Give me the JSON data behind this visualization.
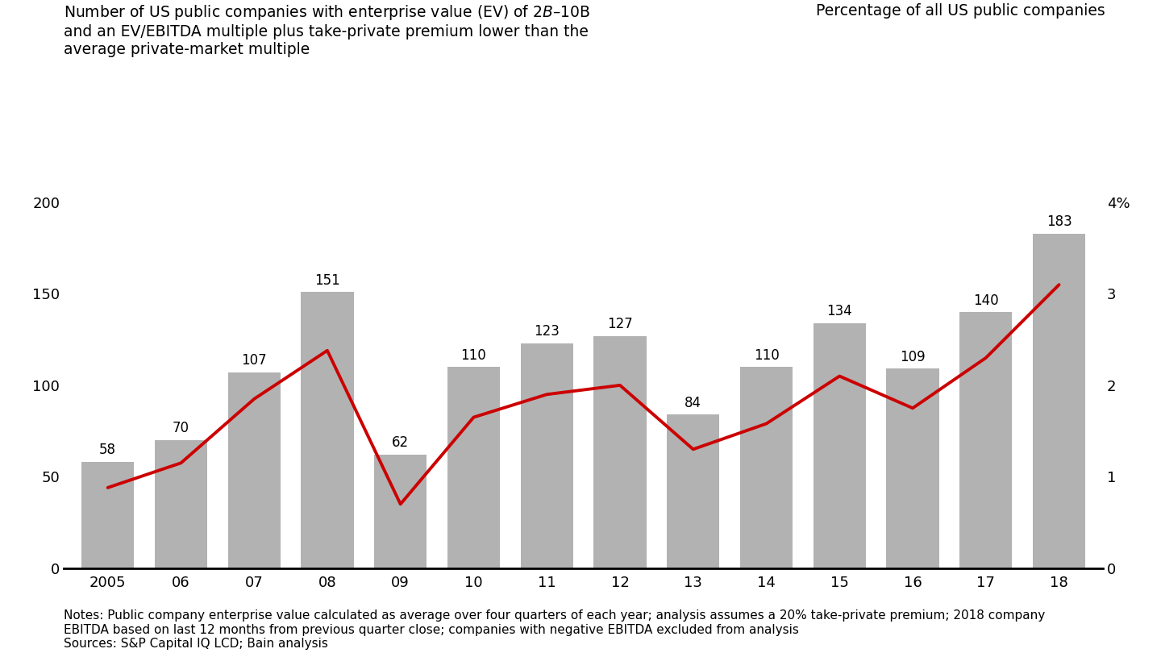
{
  "years": [
    "2005",
    "06",
    "07",
    "08",
    "09",
    "10",
    "11",
    "12",
    "13",
    "14",
    "15",
    "16",
    "17",
    "18"
  ],
  "bar_values": [
    58,
    70,
    107,
    151,
    62,
    110,
    123,
    127,
    84,
    110,
    134,
    109,
    140,
    183
  ],
  "bar_color": "#b2b2b2",
  "line_values": [
    0.88,
    1.15,
    1.85,
    2.38,
    0.7,
    1.65,
    1.9,
    2.0,
    1.3,
    1.58,
    2.1,
    1.75,
    2.3,
    3.1
  ],
  "line_color": "#cc0000",
  "line_width": 2.8,
  "left_ylim": [
    0,
    200
  ],
  "right_ylim": [
    0,
    4
  ],
  "left_yticks": [
    0,
    50,
    100,
    150,
    200
  ],
  "right_yticks": [
    0,
    1,
    2,
    3,
    4
  ],
  "right_yticklabels": [
    "0",
    "1",
    "2",
    "3",
    "4%"
  ],
  "title_left_line1": "Number of US public companies with enterprise value (EV) of $2B–$10B",
  "title_left_line2": "and an EV/EBITDA multiple plus take-private premium lower than the",
  "title_left_line3": "average private-market multiple",
  "title_right": "Percentage of all US public companies",
  "note_text": "Notes: Public company enterprise value calculated as average over four quarters of each year; analysis assumes a 20% take-private premium; 2018 company\nEBITDA based on last 12 months from previous quarter close; companies with negative EBITDA excluded from analysis\nSources: S&P Capital IQ LCD; Bain analysis",
  "bar_label_fontsize": 12,
  "axis_tick_fontsize": 13,
  "title_fontsize": 13.5,
  "note_fontsize": 11,
  "background_color": "#ffffff"
}
